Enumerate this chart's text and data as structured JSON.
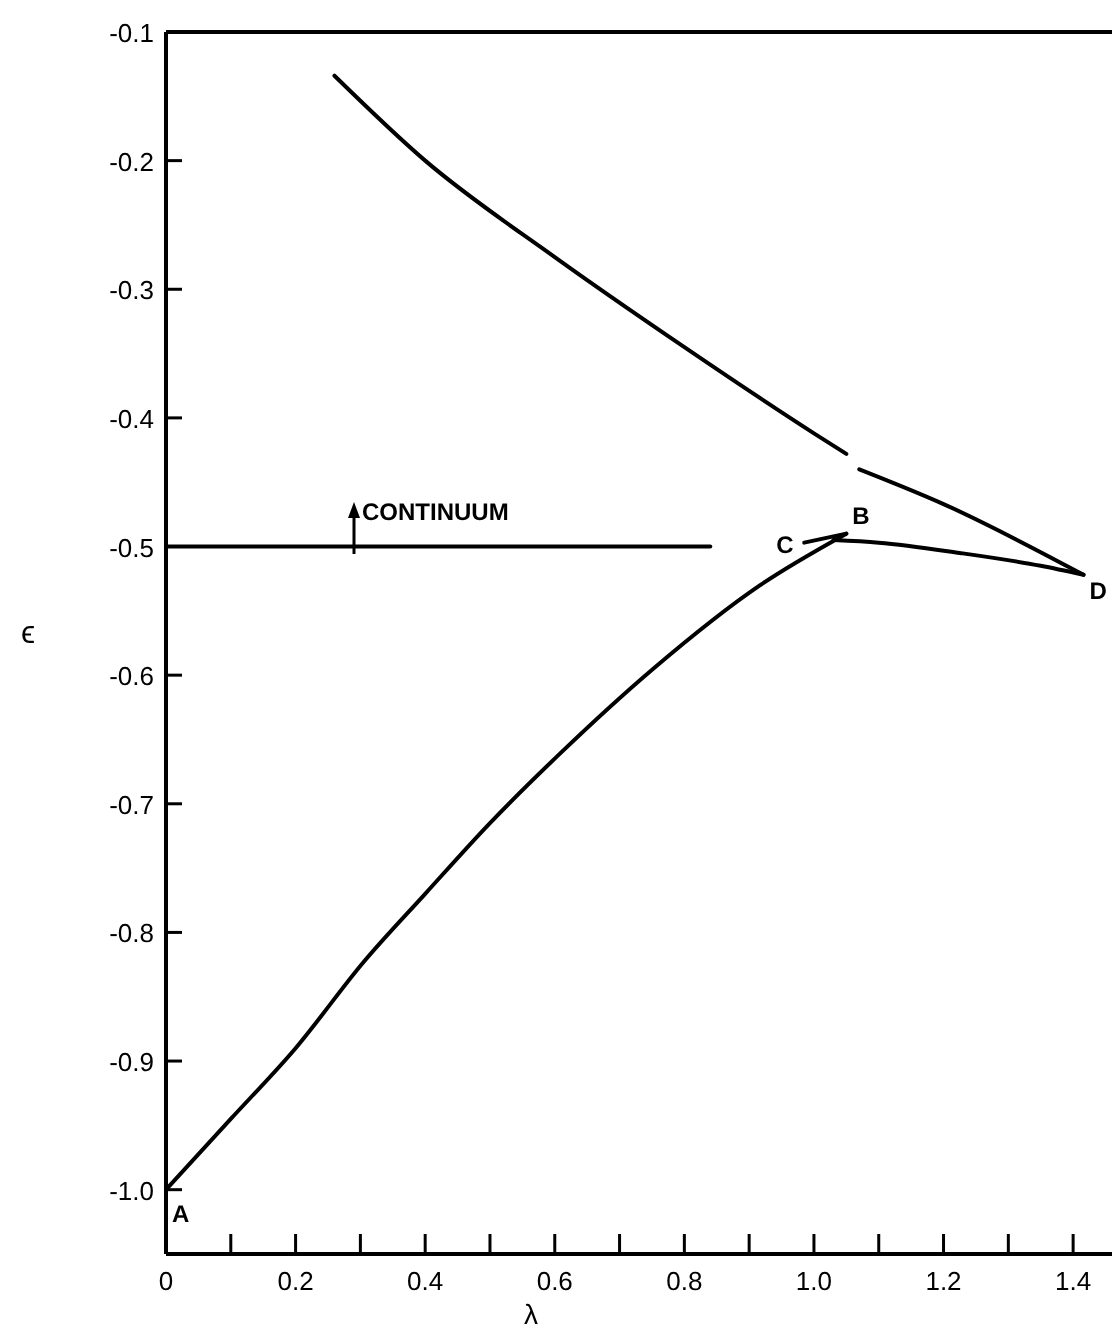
{
  "chart_data": {
    "type": "line",
    "xlabel": "λ",
    "ylabel": "ϵ",
    "series": [
      {
        "color": "#000000",
        "x": [
          0.26,
          0.4,
          0.6,
          0.8,
          1.0,
          1.05,
          1.06,
          1.07,
          1.2,
          1.416
        ],
        "values": [
          -0.134,
          -0.2,
          -0.275,
          -0.345,
          -0.412,
          -0.428,
          null,
          -0.44,
          -0.467,
          -0.522
        ]
      },
      {
        "color": "#000000",
        "x": [
          0,
          0.1,
          0.2,
          0.305,
          0.4,
          0.5,
          0.608,
          0.752,
          0.917,
          1.05
        ],
        "values": [
          -1.0,
          -0.945,
          -0.89,
          -0.823,
          -0.77,
          -0.715,
          -0.661,
          -0.595,
          -0.53,
          -0.49
        ]
      },
      {
        "color": "#000000",
        "x": [
          0.985,
          1.05
        ],
        "values": [
          -0.497,
          -0.49
        ]
      },
      {
        "color": "#000000",
        "x": [
          1.03,
          1.1,
          1.225,
          1.35,
          1.416
        ],
        "values": [
          -0.495,
          -0.497,
          -0.505,
          -0.515,
          -0.522
        ]
      },
      {
        "color": "#000000",
        "x": [
          0,
          0.84
        ],
        "values": [
          -0.5,
          -0.5
        ]
      }
    ],
    "annotations": [
      "CONTINUUM",
      {
        "text": "A",
        "x": 0.0,
        "y": -1.0
      },
      {
        "text": "B",
        "x": 1.05,
        "y": -0.49
      },
      {
        "text": "C",
        "x": 0.985,
        "y": -0.497
      },
      {
        "text": "D",
        "x": 1.416,
        "y": -0.522
      }
    ],
    "xlim": [
      0,
      1.46
    ],
    "ylim": [
      -1.05,
      -0.1
    ],
    "xticks": [
      {
        "value": 0,
        "label": "0"
      },
      {
        "value": 0.1,
        "label": null
      },
      {
        "value": 0.2,
        "label": "0.2"
      },
      {
        "value": 0.3,
        "label": null
      },
      {
        "value": 0.4,
        "label": "0.4"
      },
      {
        "value": 0.5,
        "label": null
      },
      {
        "value": 0.6,
        "label": "0.6"
      },
      {
        "value": 0.7,
        "label": null
      },
      {
        "value": 0.8,
        "label": "0.8"
      },
      {
        "value": 0.9,
        "label": null
      },
      {
        "value": 1.0,
        "label": "1.0"
      },
      {
        "value": 1.1,
        "label": null
      },
      {
        "value": 1.2,
        "label": "1.2"
      },
      {
        "value": 1.3,
        "label": null
      },
      {
        "value": 1.4,
        "label": "1.4"
      }
    ],
    "yticks": [
      {
        "value": -0.1,
        "label": "-0.1"
      },
      {
        "value": -0.2,
        "label": "-0.2"
      },
      {
        "value": -0.3,
        "label": "-0.3"
      },
      {
        "value": -0.4,
        "label": "-0.4"
      },
      {
        "value": -0.5,
        "label": "-0.5"
      },
      {
        "value": -0.6,
        "label": "-0.6"
      },
      {
        "value": -0.7,
        "label": "-0.7"
      },
      {
        "value": -0.8,
        "label": "-0.8"
      },
      {
        "value": -0.9,
        "label": "-0.9"
      },
      {
        "value": -1.0,
        "label": "-1.0"
      }
    ],
    "marker": "none",
    "line_style": "solid",
    "grid": false
  }
}
